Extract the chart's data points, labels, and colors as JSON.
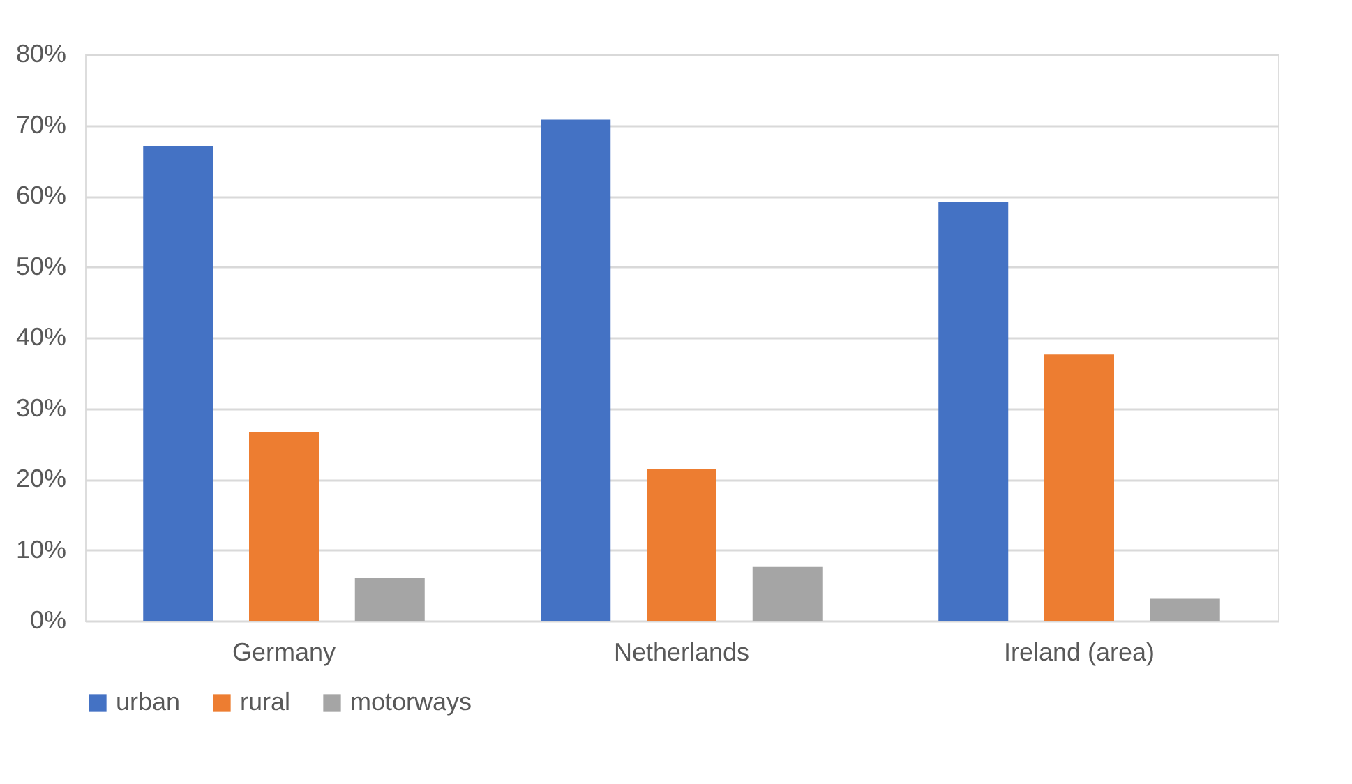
{
  "chart_data": {
    "type": "bar",
    "categories": [
      "Germany",
      "Netherlands",
      "Ireland (area)"
    ],
    "series": [
      {
        "name": "urban",
        "color": "#4472c4",
        "values": [
          67.1,
          70.8,
          59.2
        ]
      },
      {
        "name": "rural",
        "color": "#ed7d31",
        "values": [
          26.6,
          21.4,
          37.6
        ]
      },
      {
        "name": "motorways",
        "color": "#a5a5a5",
        "values": [
          6.1,
          7.6,
          3.1
        ]
      }
    ],
    "ylim": [
      0,
      80
    ],
    "yticks": [
      {
        "value": 0,
        "label": "0%"
      },
      {
        "value": 10,
        "label": "10%"
      },
      {
        "value": 20,
        "label": "20%"
      },
      {
        "value": 30,
        "label": "30%"
      },
      {
        "value": 40,
        "label": "40%"
      },
      {
        "value": 50,
        "label": "50%"
      },
      {
        "value": 60,
        "label": "60%"
      },
      {
        "value": 70,
        "label": "70%"
      },
      {
        "value": 80,
        "label": "80%"
      }
    ],
    "grid": "y",
    "legend": "bottom"
  }
}
